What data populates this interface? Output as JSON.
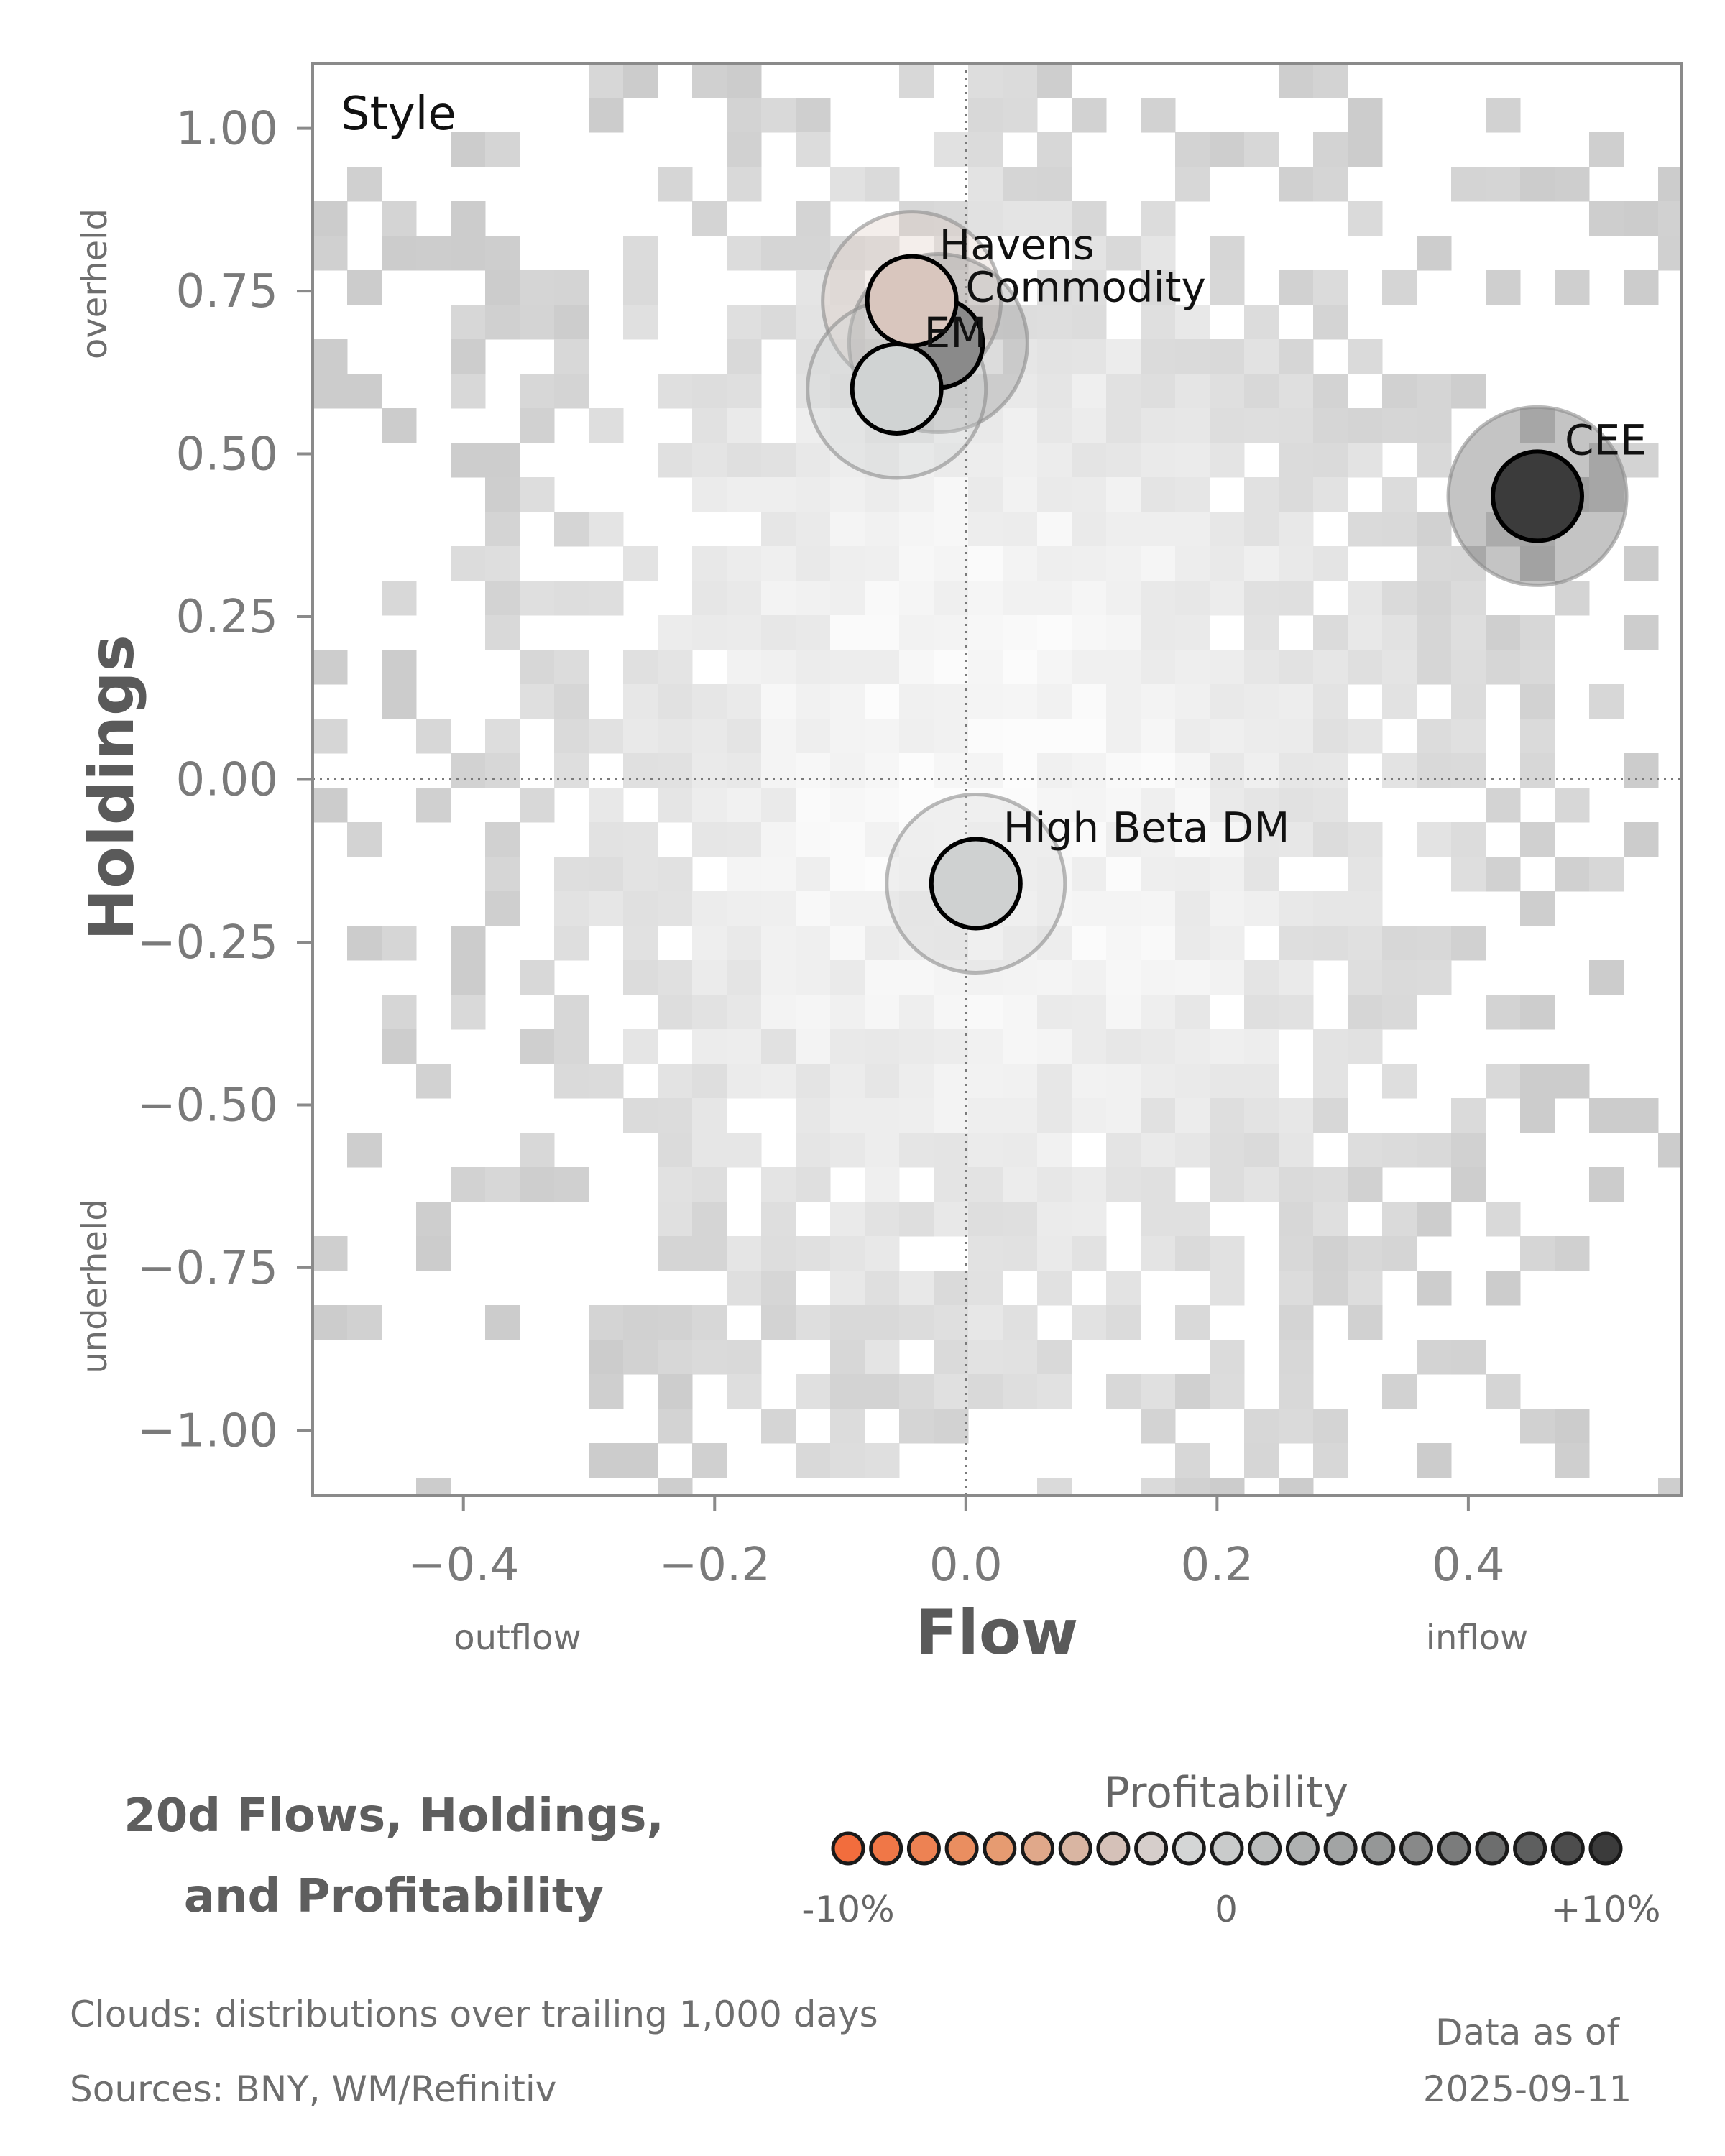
{
  "chart_data": {
    "type": "scatter",
    "panel_label": "Style",
    "xlabel": "Flow",
    "ylabel": "Holdings",
    "xlim": [
      -0.52,
      0.57
    ],
    "ylim": [
      -1.1,
      1.1
    ],
    "x_ticks": [
      -0.4,
      -0.2,
      0.0,
      0.2,
      0.4
    ],
    "x_tick_labels": [
      "−0.4",
      "−0.2",
      "0.0",
      "0.2",
      "0.4"
    ],
    "y_ticks": [
      1.0,
      0.75,
      0.5,
      0.25,
      0.0,
      -0.25,
      -0.5,
      -0.75,
      -1.0
    ],
    "y_tick_labels": [
      "1.00",
      "0.75",
      "0.50",
      "0.25",
      "0.00",
      "−0.25",
      "−0.50",
      "−0.75",
      "−1.00"
    ],
    "x_hints": {
      "left": "outflow",
      "right": "inflow"
    },
    "y_hints": {
      "top": "overheld",
      "bottom": "underheld"
    },
    "reference_lines": {
      "x": 0,
      "y": 0,
      "style": "dotted"
    },
    "background": "grey 2D histogram cloud of trailing distributions",
    "points": [
      {
        "label": "Havens",
        "x": -0.043,
        "y": 0.735,
        "profitability": -0.02,
        "color": "#d9c6be"
      },
      {
        "label": "Commodity",
        "x": -0.022,
        "y": 0.67,
        "profitability": 0.06,
        "color": "#8a8a8a"
      },
      {
        "label": "EM",
        "x": -0.055,
        "y": 0.6,
        "profitability": 0.01,
        "color": "#d0d3d3"
      },
      {
        "label": "CEE",
        "x": 0.455,
        "y": 0.435,
        "profitability": 0.1,
        "color": "#3b3b3b"
      },
      {
        "label": "High Beta DM",
        "x": 0.008,
        "y": -0.16,
        "profitability": 0.01,
        "color": "#cfd1d1"
      }
    ],
    "legend": {
      "title": "Profitability",
      "tick_labels": [
        "-10%",
        "0",
        "+10%"
      ],
      "colors": [
        "#f26d3d",
        "#f07747",
        "#ed8253",
        "#ea8e60",
        "#e69b71",
        "#e0a88a",
        "#d9b5a2",
        "#d5c1b8",
        "#d6cecb",
        "#d4d6d6",
        "#c9cbcb",
        "#bcbebe",
        "#afb1b1",
        "#a2a4a4",
        "#959797",
        "#888989",
        "#7b7c7c",
        "#6d6e6e",
        "#5e5f5f",
        "#4d4d4d",
        "#3b3b3b"
      ]
    }
  },
  "title": {
    "line1": "20d Flows, Holdings,",
    "line2": "and Profitability"
  },
  "footer": {
    "clouds_note": "Clouds:  distributions over trailing 1,000 days",
    "sources_note": "Sources:  BNY, WM/Refinitiv",
    "data_as_of_label": "Data as of",
    "data_as_of_date": "2025-09-11"
  }
}
